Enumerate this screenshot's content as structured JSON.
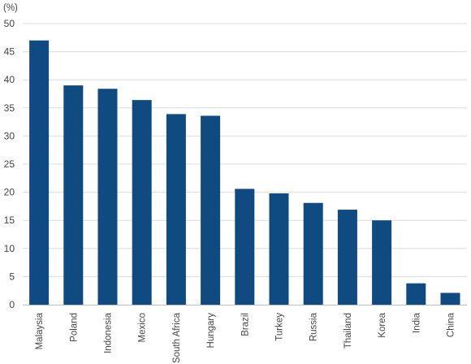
{
  "chart_data": {
    "type": "bar",
    "title": "",
    "xlabel": "",
    "ylabel": "",
    "unit_label": "(%)",
    "categories": [
      "Malaysia",
      "Poland",
      "Indonesia",
      "Mexico",
      "South Africa",
      "Hungary",
      "Brazil",
      "Turkey",
      "Russia",
      "Thailand",
      "Korea",
      "India",
      "China"
    ],
    "values": [
      47.0,
      39.0,
      38.4,
      36.4,
      33.9,
      33.6,
      20.6,
      19.8,
      18.1,
      16.9,
      15.0,
      3.8,
      2.1
    ],
    "ylim": [
      0,
      50
    ],
    "yticks": [
      0,
      5,
      10,
      15,
      20,
      25,
      30,
      35,
      40,
      45,
      50
    ],
    "grid": true,
    "legend": "none",
    "bar_color": "#0f4a80"
  }
}
